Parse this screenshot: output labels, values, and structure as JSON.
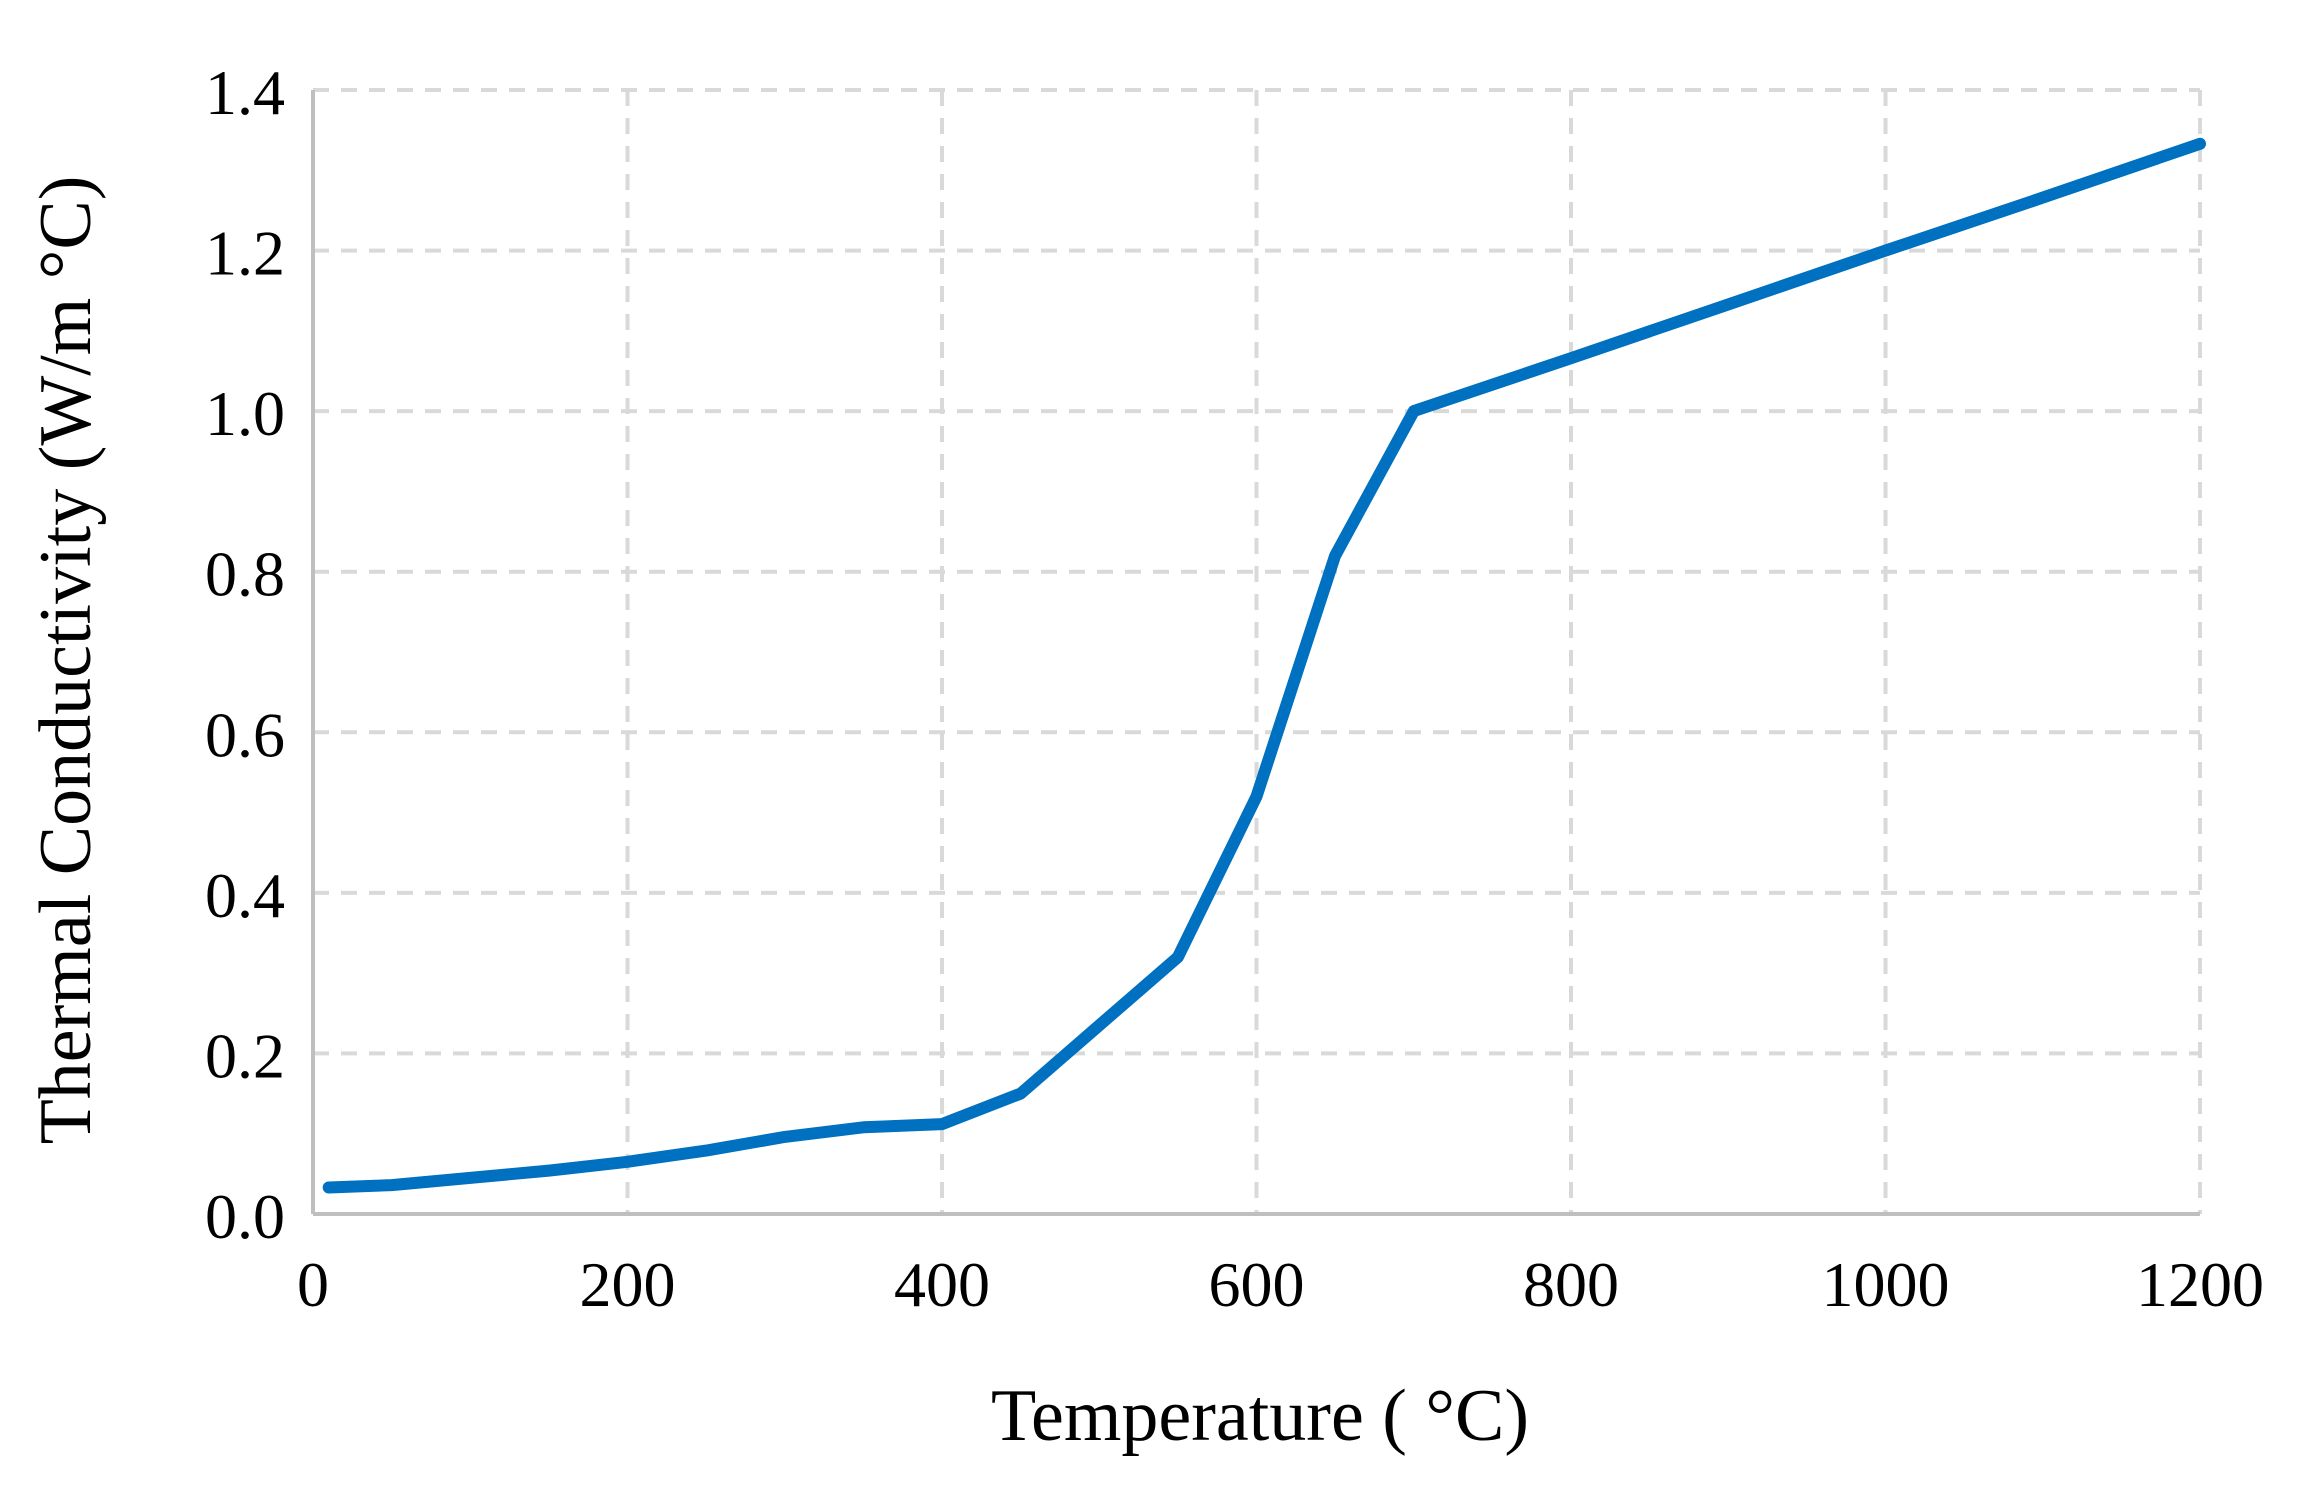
{
  "chart_data": {
    "type": "line",
    "title": "",
    "xlabel": "Temperature ( °C)",
    "ylabel": "Thermal Conductivity (W/m °C)",
    "xlim": [
      0,
      1200
    ],
    "ylim": [
      0.0,
      1.4
    ],
    "x_ticks": [
      "0",
      "200",
      "400",
      "600",
      "800",
      "1000",
      "1200"
    ],
    "y_ticks": [
      "0.0",
      "0.2",
      "0.4",
      "0.6",
      "0.8",
      "1.0",
      "1.2",
      "1.4"
    ],
    "grid": true,
    "legend": "none",
    "series": [
      {
        "name": "Thermal Conductivity",
        "color": "#0070C0",
        "x": [
          10,
          50,
          100,
          150,
          200,
          250,
          300,
          350,
          400,
          450,
          500,
          550,
          600,
          650,
          700,
          800,
          900,
          1000,
          1100,
          1200
        ],
        "y": [
          0.033,
          0.036,
          0.045,
          0.054,
          0.065,
          0.079,
          0.096,
          0.108,
          0.112,
          0.15,
          0.235,
          0.32,
          0.52,
          0.82,
          1.0,
          1.066,
          1.133,
          1.2,
          1.266,
          1.333
        ]
      }
    ]
  },
  "colors": {
    "grid": "#D9D9D9",
    "axis": "#BFBFBF",
    "line": "#0070C0"
  }
}
